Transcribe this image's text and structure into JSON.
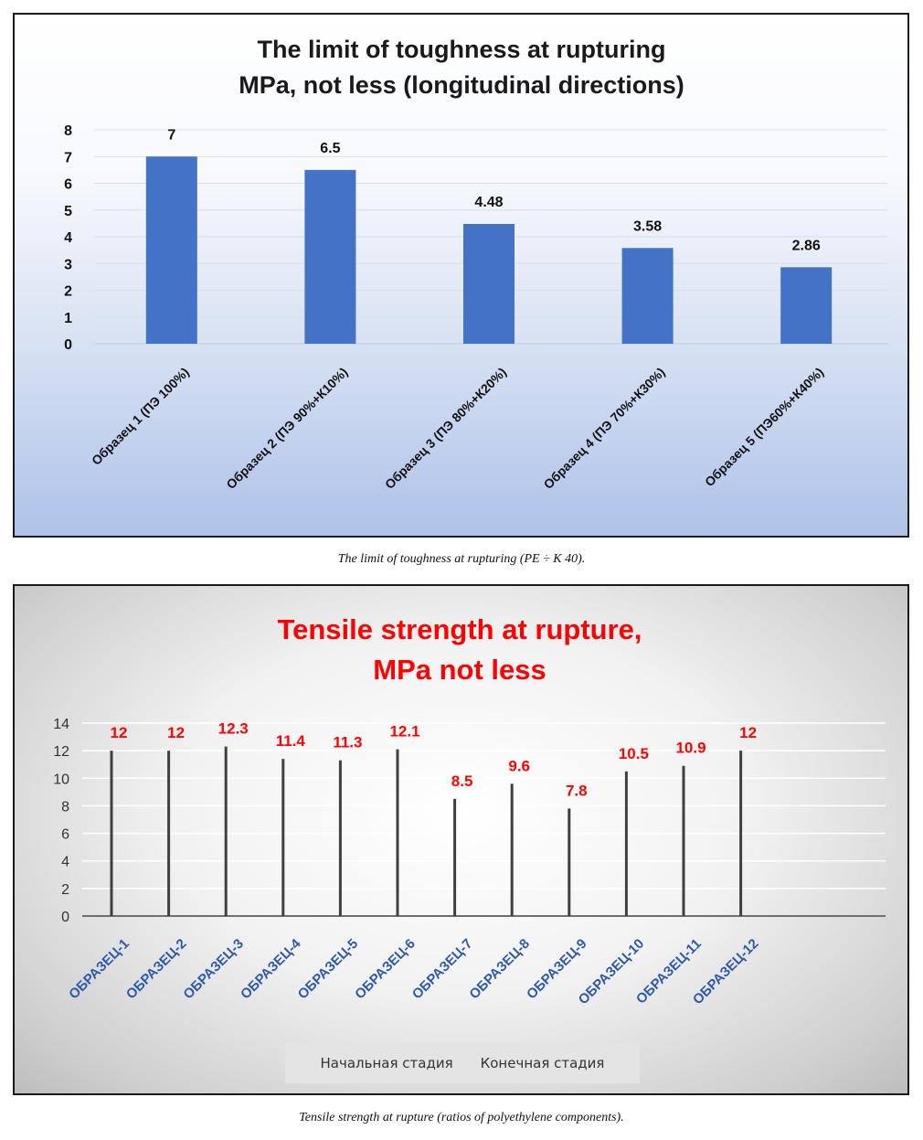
{
  "chart_data": [
    {
      "type": "bar",
      "title": [
        "The limit of toughness at rupturing",
        "MPa, not less (longitudinal directions)"
      ],
      "categories": [
        "Образец 1 (ПЭ 100%)",
        "Образец 2 (ПЭ 90%+К10%)",
        "Образец 3 (ПЭ 80%+К20%)",
        "Образец 4 (ПЭ 70%+К30%)",
        "Образец 5 (ПЭ60%+К40%)"
      ],
      "values": [
        7,
        6.5,
        4.48,
        3.58,
        2.86
      ],
      "data_labels": [
        "7",
        "6.5",
        "4.48",
        "3.58",
        "2.86"
      ],
      "ylim": [
        0,
        8
      ],
      "yticks": [
        0,
        1,
        2,
        3,
        4,
        5,
        6,
        7,
        8
      ],
      "grid": true,
      "colors": {
        "bar": "#4472c4",
        "text": "#000000"
      }
    },
    {
      "type": "bar",
      "title": [
        "Tensile strength at rupture,",
        "MPa not less"
      ],
      "categories": [
        "ОБРАЗЕЦ-1",
        "ОБРАЗЕЦ-2",
        "ОБРАЗЕЦ-3",
        "ОБРАЗЕЦ-4",
        "ОБРАЗЕЦ-5",
        "ОБРАЗЕЦ-6",
        "ОБРАЗЕЦ-7",
        "ОБРАЗЕЦ-8",
        "ОБРАЗЕЦ-9",
        "ОБРАЗЕЦ-10",
        "ОБРАЗЕЦ-11",
        "ОБРАЗЕЦ-12"
      ],
      "values": [
        12,
        12,
        12.3,
        11.4,
        11.3,
        12.1,
        8.5,
        9.6,
        7.8,
        10.5,
        10.9,
        12
      ],
      "data_labels": [
        "12",
        "12",
        "12.3",
        "11.4",
        "11.3",
        "12.1",
        "8.5",
        "9.6",
        "7.8",
        "10.5",
        "10.9",
        "12"
      ],
      "ylim": [
        0,
        14
      ],
      "yticks": [
        0,
        2,
        4,
        6,
        8,
        10,
        12,
        14
      ],
      "grid": true,
      "legend": [
        "Начальная стадия",
        "Конечная стадия"
      ],
      "legend_position": "bottom",
      "colors": {
        "bar": "#404040",
        "label": "#ff0000",
        "category": "#2e5aa8",
        "title": "#ff0000"
      }
    }
  ],
  "captions": {
    "chart1": "The limit of toughness at rupturing (PE ÷ K 40).",
    "chart2": "Tensile strength at rupture (ratios of polyethylene components)."
  }
}
